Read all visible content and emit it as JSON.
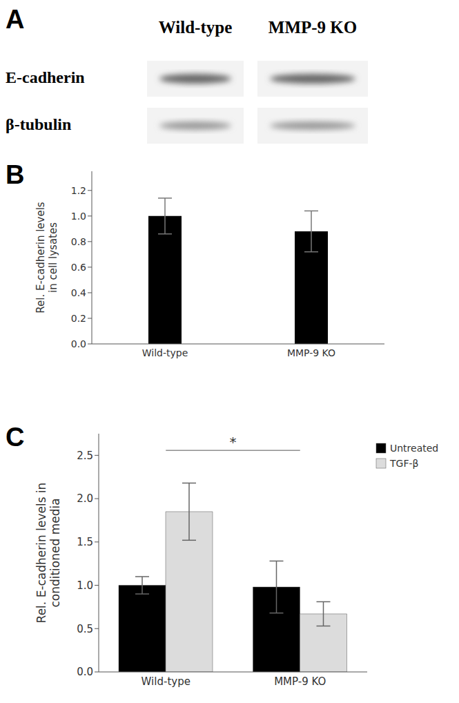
{
  "blot": {
    "panel_label": "A",
    "columns": [
      "Wild-type",
      "MMP-9 KO"
    ],
    "rows": [
      "E-cadherin",
      "β-tubulin"
    ]
  },
  "chart_data": [
    {
      "panel_label": "B",
      "type": "bar",
      "y_label": "Rel. E-cadherin levels in cell lysates",
      "categories": [
        "Wild-type",
        "MMP-9 KO"
      ],
      "values": [
        1.0,
        0.88
      ],
      "error": [
        0.14,
        0.16
      ],
      "color": "#000000",
      "ylim": [
        0,
        1.35
      ],
      "yticks": [
        {
          "value": 0,
          "label": "0.0"
        },
        0.2,
        0.4,
        0.6,
        0.8,
        {
          "value": 1,
          "label": "1.0"
        },
        1.2
      ]
    },
    {
      "panel_label": "C",
      "type": "bar",
      "y_label": "Rel. E-cadherin levels in conditioned media",
      "categories": [
        "Wild-type",
        "MMP-9 KO"
      ],
      "series": [
        {
          "name": "Untreated",
          "color": "#000000",
          "values": [
            1.0,
            0.98
          ],
          "error": [
            0.1,
            0.3
          ]
        },
        {
          "name": "TGF-β",
          "color": "#dcdcdc",
          "values": [
            1.85,
            0.67
          ],
          "error": [
            0.33,
            0.14
          ]
        }
      ],
      "ylim": [
        0,
        2.75
      ],
      "yticks": [
        {
          "value": 0,
          "label": "0.0"
        },
        0.5,
        {
          "value": 1,
          "label": "1.0"
        },
        1.5,
        {
          "value": 2,
          "label": "2.0"
        },
        2.5
      ],
      "legend": "upper right",
      "annotations": [
        "*"
      ]
    }
  ]
}
